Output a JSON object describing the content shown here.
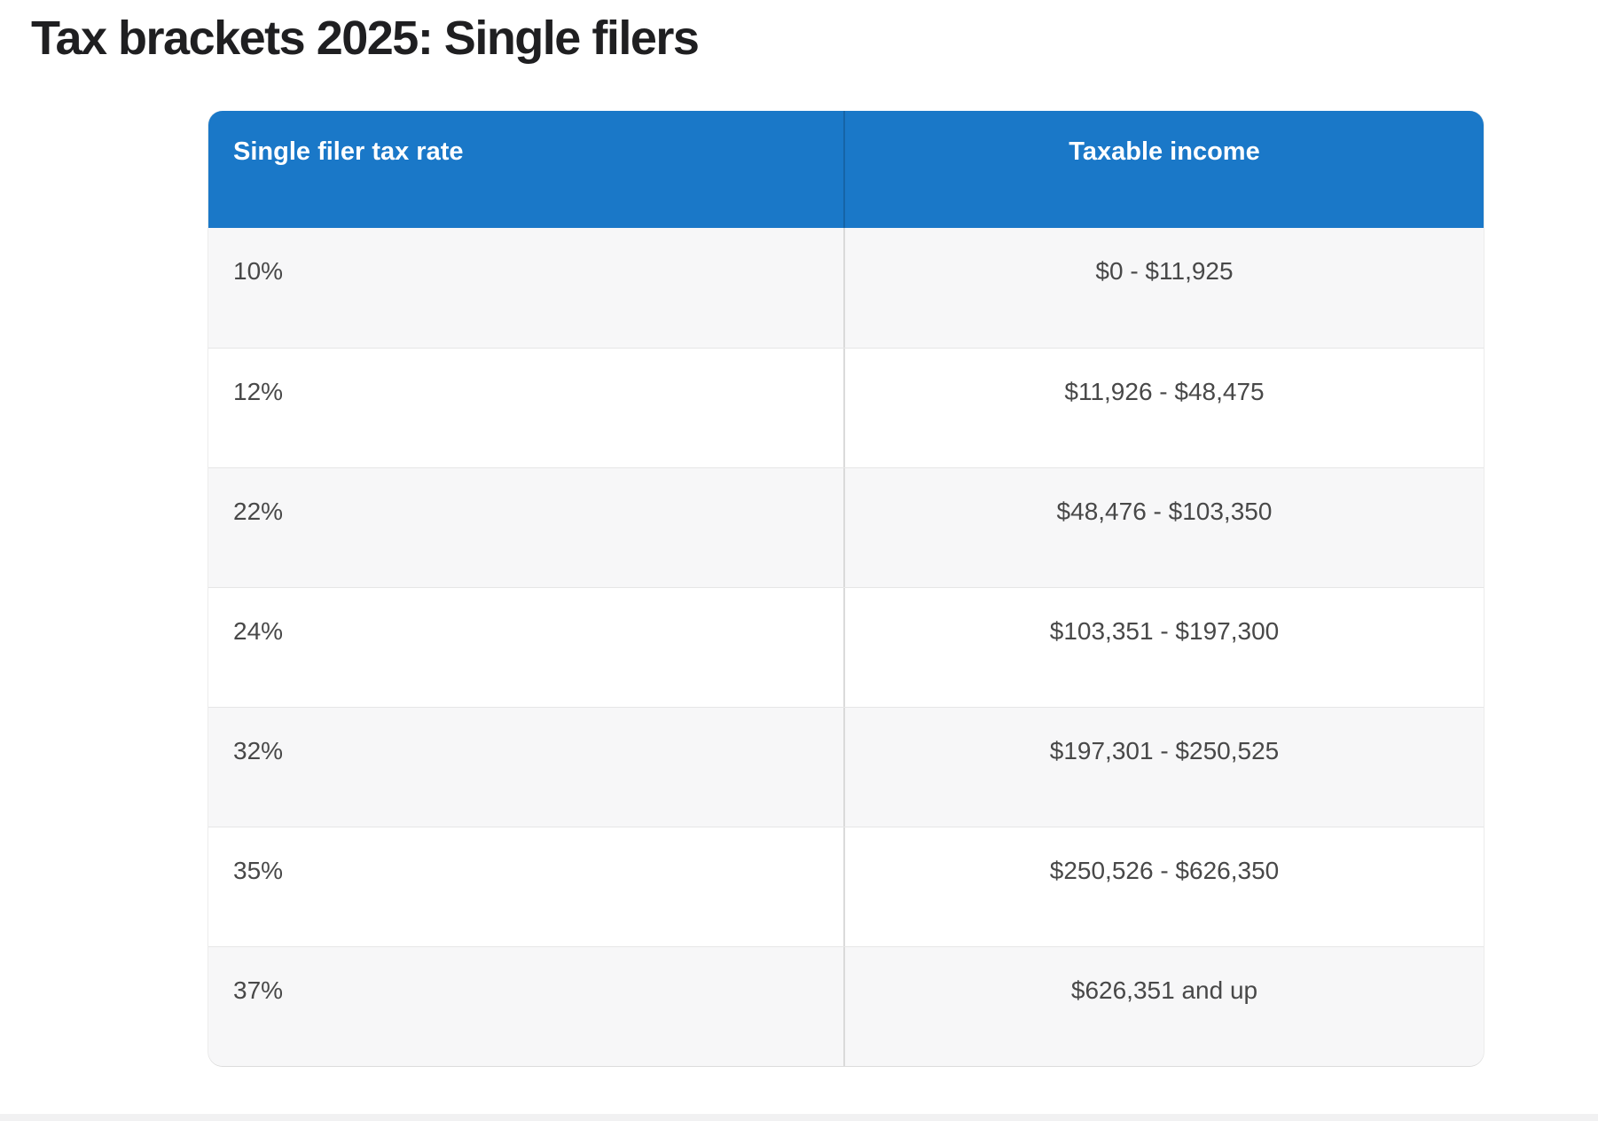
{
  "page": {
    "title": "Tax brackets 2025: Single filers"
  },
  "colors": {
    "header_bg": "#1a78c8",
    "header_text": "#ffffff",
    "row_alt_bg": "#f7f7f8",
    "row_bg": "#ffffff",
    "cell_text": "#484848",
    "title_text": "#1f1f21",
    "column_divider": "#dadada",
    "row_border": "#e6e6e6"
  },
  "chart_data": {
    "type": "table",
    "title": "Tax brackets 2025: Single filers",
    "columns": [
      "Single filer tax rate",
      "Taxable income"
    ],
    "rows": [
      [
        "10%",
        "$0 - $11,925"
      ],
      [
        "12%",
        "$11,926 - $48,475"
      ],
      [
        "22%",
        "$48,476 - $103,350"
      ],
      [
        "24%",
        "$103,351 - $197,300"
      ],
      [
        "32%",
        "$197,301 - $250,525"
      ],
      [
        "35%",
        "$250,526 - $626,350"
      ],
      [
        "37%",
        "$626,351 and up"
      ]
    ]
  }
}
